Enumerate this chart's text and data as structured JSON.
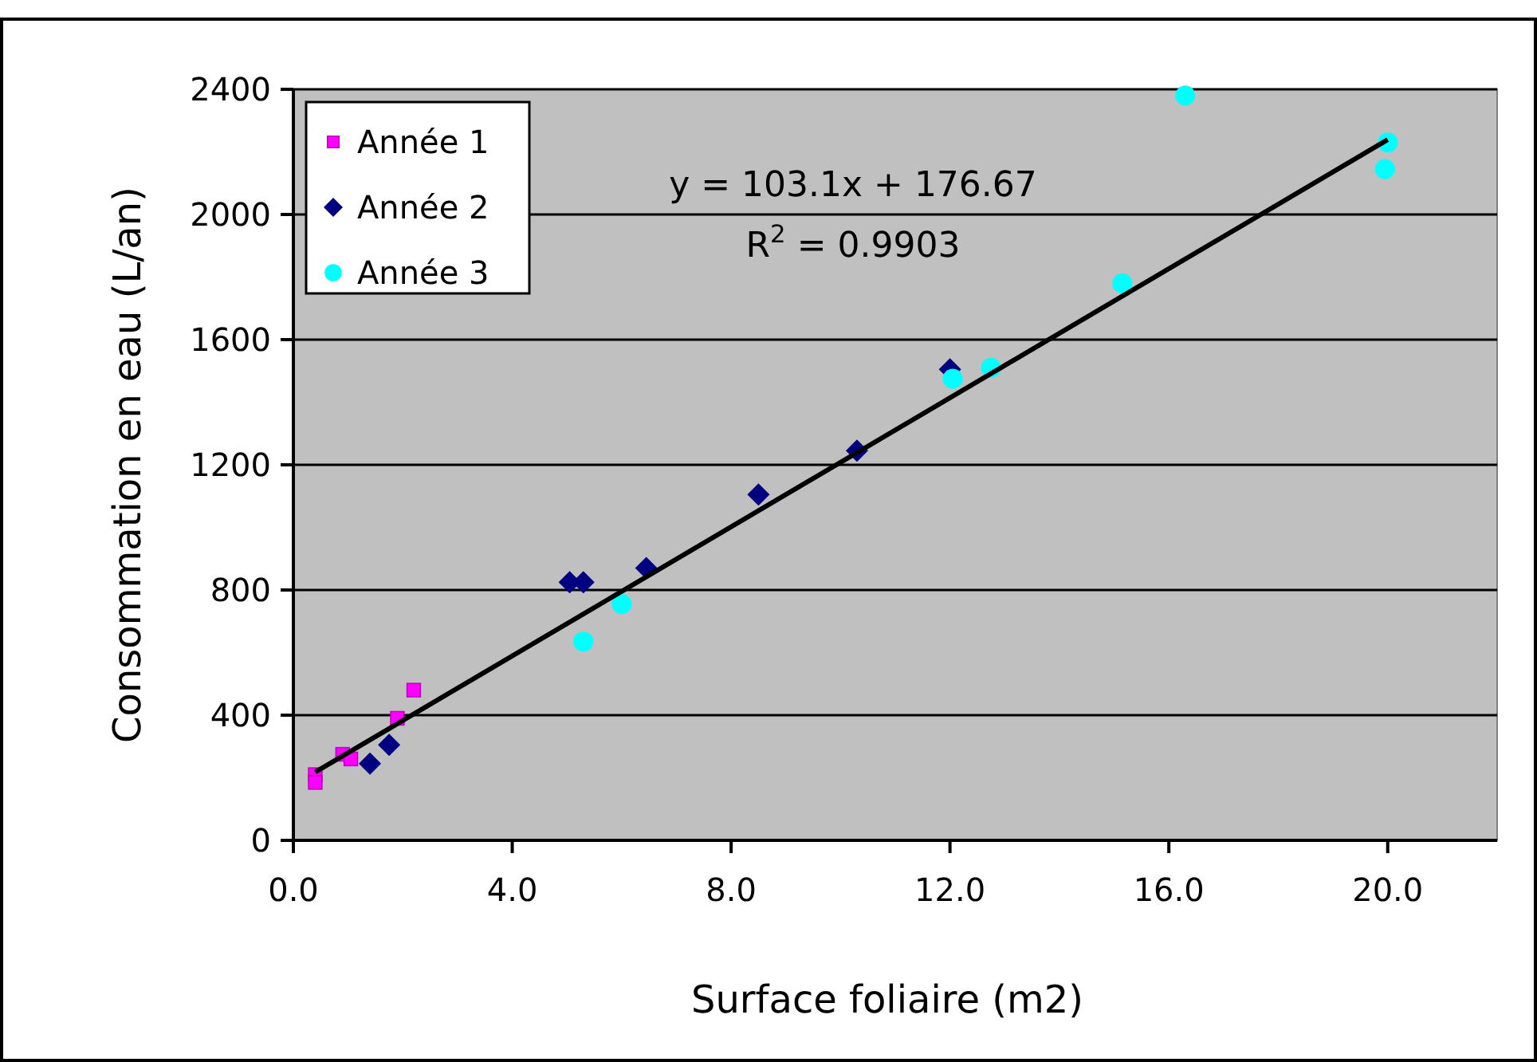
{
  "chart_data": {
    "type": "scatter",
    "xlabel": "Surface foliaire (m2)",
    "ylabel": "Consommation en eau (L/an)",
    "xlim": [
      0,
      22
    ],
    "xticks": [
      {
        "value": 0,
        "label": "0.0"
      },
      {
        "value": 4,
        "label": "4.0"
      },
      {
        "value": 8,
        "label": "8.0"
      },
      {
        "value": 12,
        "label": "12.0"
      },
      {
        "value": 16,
        "label": "16.0"
      },
      {
        "value": 20,
        "label": "20.0"
      }
    ],
    "ylim": [
      0,
      2400
    ],
    "yticks": [
      0,
      400,
      800,
      1200,
      1600,
      2000,
      2400
    ],
    "grid": "y",
    "legend": "top left",
    "annotations": [
      "y = 103.1x + 176.67",
      "R$^{2}$ = 0.9903"
    ],
    "series": [
      {
        "name": "Année 1",
        "color": "#ff00ff",
        "marker": "square",
        "x": [
          0.4,
          0.4,
          0.9,
          1.05,
          1.9,
          2.2
        ],
        "values": [
          210,
          185,
          275,
          260,
          390,
          480
        ]
      },
      {
        "name": "Année 2",
        "color": "#000080",
        "marker": "diamond",
        "x": [
          1.4,
          1.75,
          5.05,
          5.3,
          6.45,
          8.5,
          10.3,
          12.0
        ],
        "values": [
          245,
          305,
          825,
          825,
          870,
          1105,
          1245,
          1505
        ]
      },
      {
        "name": "Année 3",
        "color": "#00ffff",
        "marker": "circle",
        "x": [
          5.3,
          6.0,
          12.05,
          12.75,
          15.15,
          16.3,
          19.95,
          20.0
        ],
        "values": [
          635,
          755,
          1475,
          1510,
          1780,
          2380,
          2145,
          2230
        ]
      },
      {
        "type": "line",
        "color": "#000000",
        "line_style": "solid",
        "x": [
          0.4,
          20
        ],
        "values": [
          218,
          2239
        ]
      }
    ]
  }
}
